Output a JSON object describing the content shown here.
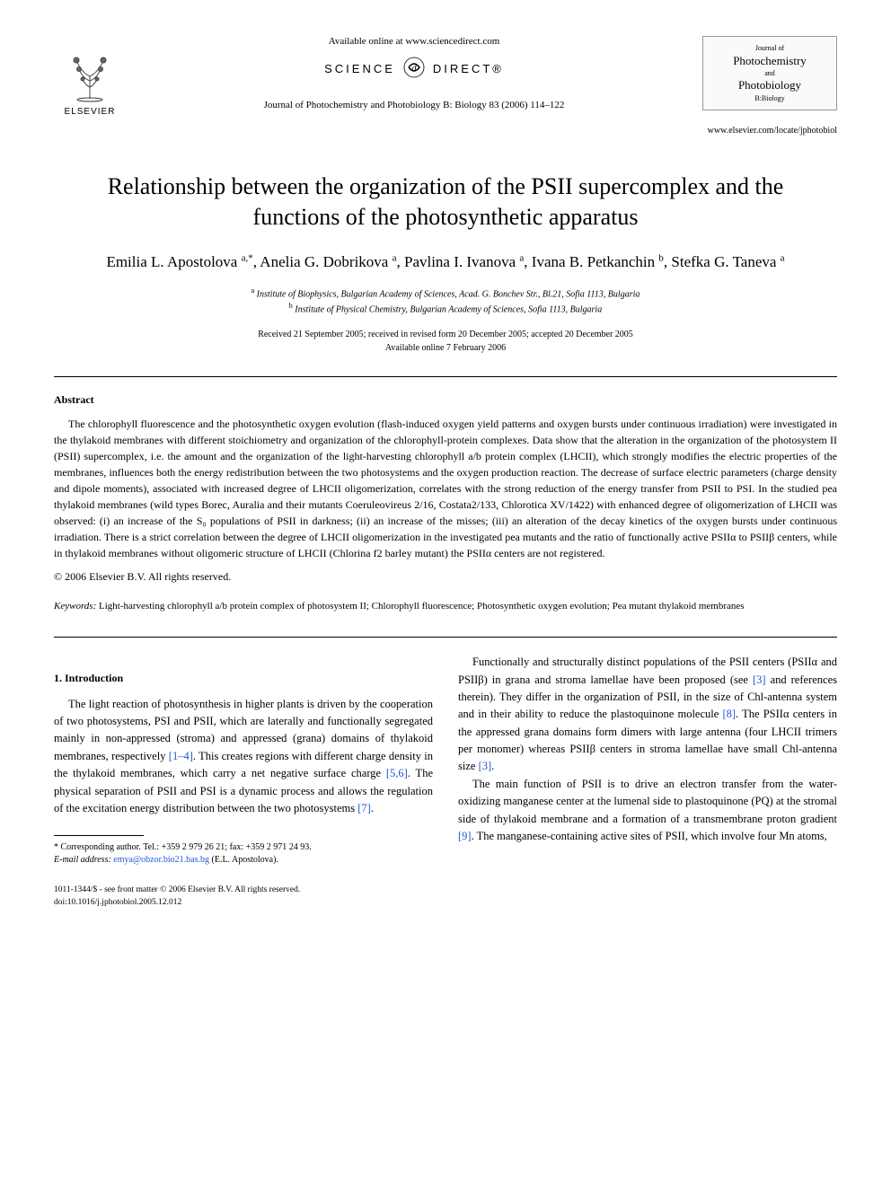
{
  "header": {
    "publisher_name": "ELSEVIER",
    "available_online": "Available online at www.sciencedirect.com",
    "science_direct_left": "SCIENCE",
    "science_direct_right": "DIRECT®",
    "journal_ref": "Journal of Photochemistry and Photobiology B: Biology 83 (2006) 114–122",
    "journal_box": {
      "pretitle": "Journal of",
      "line1": "Photochemistry",
      "and": "and",
      "line2": "Photobiology",
      "sub": "B:Biology"
    },
    "journal_url": "www.elsevier.com/locate/jphotobiol"
  },
  "title": "Relationship between the organization of the PSII supercomplex and the functions of the photosynthetic apparatus",
  "authors_html": "Emilia L. Apostolova <sup>a,*</sup>, Anelia G. Dobrikova <sup>a</sup>, Pavlina I. Ivanova <sup>a</sup>, Ivana B. Petkanchin <sup>b</sup>, Stefka G. Taneva <sup>a</sup>",
  "affiliations": [
    "a Institute of Biophysics, Bulgarian Academy of Sciences, Acad. G. Bonchev Str., Bl.21, Sofia 1113, Bulgaria",
    "b Institute of Physical Chemistry, Bulgarian Academy of Sciences, Sofia 1113, Bulgaria"
  ],
  "dates": {
    "line1": "Received 21 September 2005; received in revised form 20 December 2005; accepted 20 December 2005",
    "line2": "Available online 7 February 2006"
  },
  "abstract": {
    "heading": "Abstract",
    "text": "The chlorophyll fluorescence and the photosynthetic oxygen evolution (flash-induced oxygen yield patterns and oxygen bursts under continuous irradiation) were investigated in the thylakoid membranes with different stoichiometry and organization of the chlorophyll-protein complexes. Data show that the alteration in the organization of the photosystem II (PSII) supercomplex, i.e. the amount and the organization of the light-harvesting chlorophyll a/b protein complex (LHCII), which strongly modifies the electric properties of the membranes, influences both the energy redistribution between the two photosystems and the oxygen production reaction. The decrease of surface electric parameters (charge density and dipole moments), associated with increased degree of LHCII oligomerization, correlates with the strong reduction of the energy transfer from PSII to PSI. In the studied pea thylakoid membranes (wild types Borec, Auralia and their mutants Coeruleovireus 2/16, Costata2/133, Chlorotica XV/1422) with enhanced degree of oligomerization of LHCII was observed: (i) an increase of the S₀ populations of PSII in darkness; (ii) an increase of the misses; (iii) an alteration of the decay kinetics of the oxygen bursts under continuous irradiation. There is a strict correlation between the degree of LHCII oligomerization in the investigated pea mutants and the ratio of functionally active PSIIα to PSIIβ centers, while in thylakoid membranes without oligomeric structure of LHCII (Chlorina f2 barley mutant) the PSIIα centers are not registered.",
    "copyright": "© 2006 Elsevier B.V. All rights reserved."
  },
  "keywords": {
    "label": "Keywords:",
    "text": "Light-harvesting chlorophyll a/b protein complex of photosystem II; Chlorophyll fluorescence; Photosynthetic oxygen evolution; Pea mutant thylakoid membranes"
  },
  "introduction": {
    "heading": "1. Introduction",
    "col1_p1": "The light reaction of photosynthesis in higher plants is driven by the cooperation of two photosystems, PSI and PSII, which are laterally and functionally segregated mainly in non-appressed (stroma) and appressed (grana) domains of thylakoid membranes, respectively [1–4]. This creates regions with different charge density in the thylakoid membranes, which carry a net negative surface charge [5,6]. The physical separation of PSII and PSI is a dynamic process and allows the regulation of the excitation energy distribution between the two photosystems [7].",
    "col2_p1": "Functionally and structurally distinct populations of the PSII centers (PSIIα and PSIIβ) in grana and stroma lamellae have been proposed (see [3] and references therein). They differ in the organization of PSII, in the size of Chl-antenna system and in their ability to reduce the plastoquinone molecule [8]. The PSIIα centers in the appressed grana domains form dimers with large antenna (four LHCII trimers per monomer) whereas PSIIβ centers in stroma lamellae have small Chl-antenna size [3].",
    "col2_p2": "The main function of PSII is to drive an electron transfer from the water-oxidizing manganese center at the lumenal side to plastoquinone (PQ) at the stromal side of thylakoid membrane and a formation of a transmembrane proton gradient [9]. The manganese-containing active sites of PSII, which involve four Mn atoms,"
  },
  "footnote": {
    "corr": "* Corresponding author. Tel.: +359 2 979 26 21; fax: +359 2 971 24 93.",
    "email_label": "E-mail address:",
    "email": "emya@obzor.bio21.bas.bg",
    "email_name": "(E.L. Apostolova)."
  },
  "footer": {
    "line1": "1011-1344/$ - see front matter © 2006 Elsevier B.V. All rights reserved.",
    "line2": "doi:10.1016/j.jphotobiol.2005.12.012"
  },
  "colors": {
    "link": "#2156d6",
    "text": "#000000",
    "bg": "#ffffff"
  }
}
